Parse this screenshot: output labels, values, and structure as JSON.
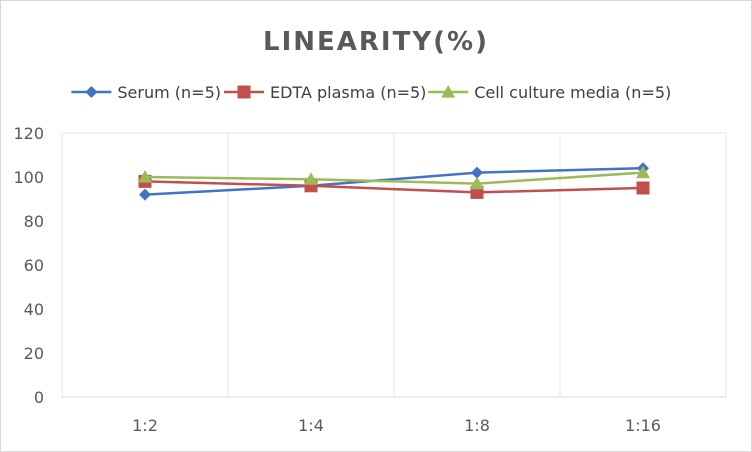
{
  "chart_data": {
    "type": "line",
    "title": "LINEARITY(%)",
    "xlabel": "",
    "ylabel": "",
    "categories": [
      "1:2",
      "1:4",
      "1:8",
      "1:16"
    ],
    "ylim": [
      0,
      120
    ],
    "yticks": [
      0,
      20,
      40,
      60,
      80,
      100,
      120
    ],
    "grid": {
      "vertical": true,
      "horizontal": false
    },
    "legend_position": "top",
    "series": [
      {
        "name": "Serum (n=5)",
        "color": "#4472c4",
        "marker": "diamond",
        "values": [
          92,
          96,
          102,
          104
        ]
      },
      {
        "name": "EDTA plasma (n=5)",
        "color": "#c0504d",
        "marker": "square",
        "values": [
          98,
          96,
          93,
          95
        ]
      },
      {
        "name": "Cell culture media (n=5)",
        "color": "#9bbb59",
        "marker": "triangle",
        "values": [
          100,
          99,
          97,
          102
        ]
      }
    ]
  }
}
